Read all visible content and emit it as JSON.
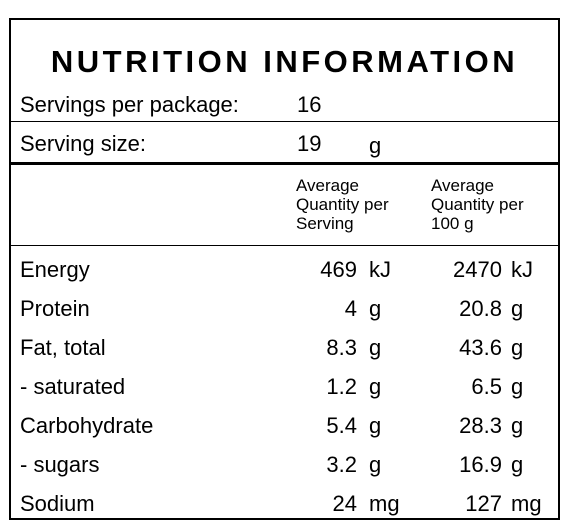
{
  "title": "NUTRITION INFORMATION",
  "servings_label": "Servings per package:",
  "servings_value": "16",
  "serving_size_label": "Serving size:",
  "serving_size_value": "19",
  "serving_size_unit": "g",
  "col_serving_header": "Average\nQuantity per\nServing",
  "col_100g_header": "Average\nQuantity per\n100 g",
  "rows": [
    {
      "name": "Energy",
      "serving": "469",
      "serving_unit": "kJ",
      "per100": "2470",
      "per100_unit": "kJ"
    },
    {
      "name": "Protein",
      "serving": "4",
      "serving_unit": "g",
      "per100": "20.8",
      "per100_unit": "g"
    },
    {
      "name": "Fat, total",
      "serving": "8.3",
      "serving_unit": "g",
      "per100": "43.6",
      "per100_unit": "g"
    },
    {
      "name": "- saturated",
      "serving": "1.2",
      "serving_unit": "g",
      "per100": "6.5",
      "per100_unit": "g"
    },
    {
      "name": "Carbohydrate",
      "serving": "5.4",
      "serving_unit": "g",
      "per100": "28.3",
      "per100_unit": "g"
    },
    {
      "name": "- sugars",
      "serving": "3.2",
      "serving_unit": "g",
      "per100": "16.9",
      "per100_unit": "g"
    },
    {
      "name": "Sodium",
      "serving": "24",
      "serving_unit": "mg",
      "per100": "127",
      "per100_unit": "mg"
    }
  ]
}
